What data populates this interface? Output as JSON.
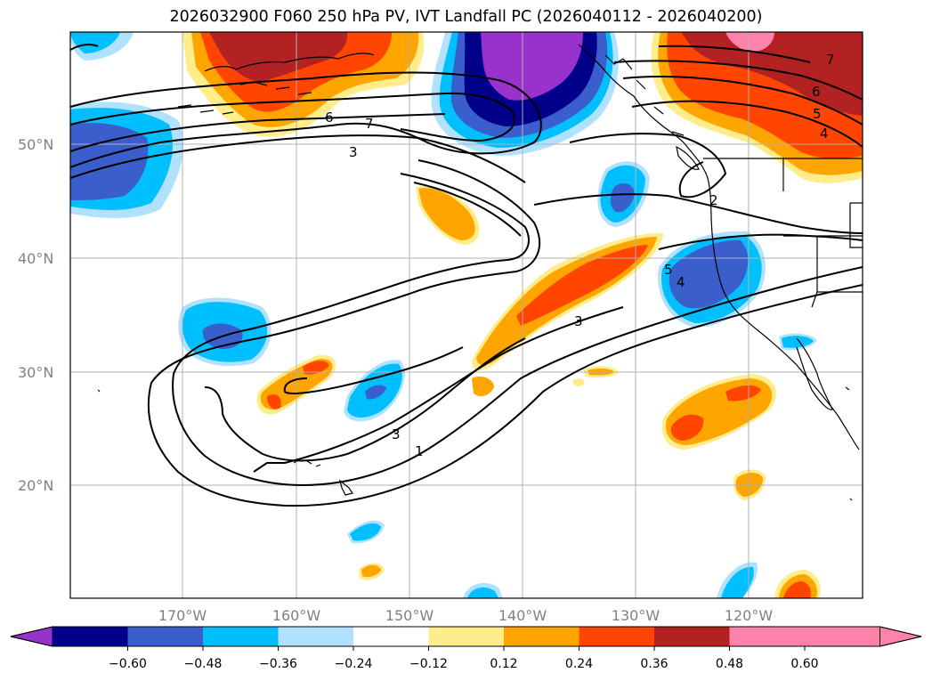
{
  "title": "2026032900 F060 250 hPa PV, IVT Landfall PC (2026040112 - 2026040200)",
  "latitude_labels": [
    "50°N",
    "40°N",
    "30°N",
    "20°N"
  ],
  "longitude_labels": [
    "170°W",
    "160°W",
    "150°W",
    "140°W",
    "130°W",
    "120°W"
  ],
  "colorbar": {
    "ticks": [
      "−0.60",
      "−0.48",
      "−0.36",
      "−0.24",
      "−0.12",
      "0.12",
      "0.24",
      "0.36",
      "0.48",
      "0.60"
    ],
    "colors": [
      "#9932CC",
      "#00008B",
      "#3A5FCD",
      "#00BFFF",
      "#B0E2FF",
      "#FFFFFF",
      "#FFEC8B",
      "#FFA500",
      "#FF4500",
      "#B22222",
      "#FF82AB",
      "#FF82AB"
    ]
  },
  "contour_labels": [
    "7",
    "6",
    "3",
    "2",
    "1",
    "5",
    "4"
  ],
  "colors": {
    "shading_purple": "#9932CC",
    "shading_navy": "#00008B",
    "shading_blue": "#3A5FCD",
    "shading_sky": "#00BFFF",
    "shading_pale": "#B0E2FF",
    "shading_yellow": "#FFEC8B",
    "shading_orange": "#FFA500",
    "shading_red": "#FF4500",
    "shading_firebrick": "#B22222",
    "shading_pink": "#FF82AB",
    "grid": "#B0B0B0",
    "axis_labels": "#808080"
  }
}
